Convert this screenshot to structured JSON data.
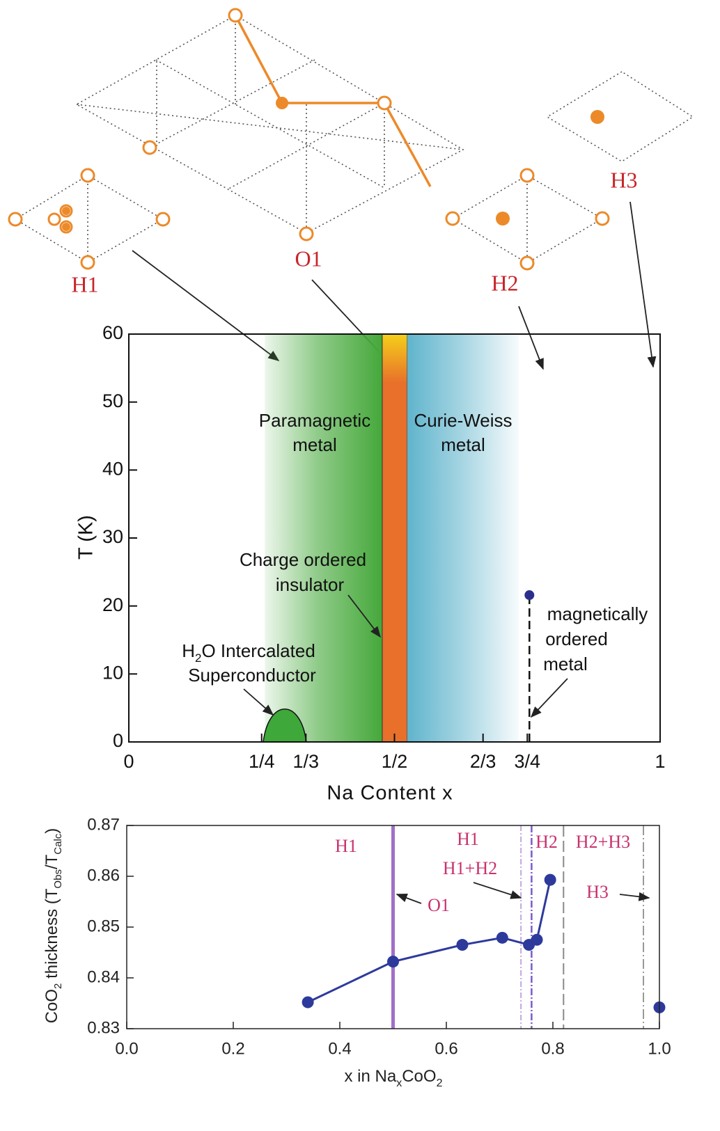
{
  "diagram": {
    "labels": [
      "H1",
      "O1",
      "H2",
      "H3"
    ]
  },
  "chart_data": [
    {
      "type": "phase",
      "xlabel": "Na Content  x",
      "ylabel": "T (K)",
      "xlim": [
        0,
        1
      ],
      "ylim": [
        0,
        60
      ],
      "xticks": [
        0,
        {
          "value": 0.25,
          "label": "1/4"
        },
        {
          "value": 0.3333,
          "label": "1/3"
        },
        {
          "value": 0.5,
          "label": "1/2"
        },
        {
          "value": 0.6667,
          "label": "2/3"
        },
        {
          "value": 0.75,
          "label": "3/4"
        },
        1
      ],
      "yticks": [
        0,
        10,
        20,
        30,
        40,
        50,
        60
      ],
      "regions": [
        {
          "label": [
            "Paramagnetic",
            "metal"
          ],
          "x": [
            0.256,
            0.477
          ],
          "color": "#45a83a"
        },
        {
          "label": [
            "Charge ordered",
            "insulator"
          ],
          "x": [
            0.477,
            0.524
          ],
          "color": "#e8702a"
        },
        {
          "label": [
            "Curie-Weiss",
            "metal"
          ],
          "x": [
            0.524,
            0.734
          ],
          "color": "#5fb4cc"
        }
      ],
      "dome": {
        "label": [
          [
            "H",
            "2",
            "O Intercalated"
          ],
          [
            "Superconductor"
          ]
        ],
        "x": [
          0.253,
          0.334
        ],
        "peak": 4.6,
        "color": "#3fa83a"
      },
      "transition": {
        "label": [
          "magnetically",
          "ordered",
          "metal"
        ],
        "x": 0.754,
        "tmax": 21.6,
        "color": "#2b2f8c"
      }
    },
    {
      "type": "line",
      "xlabel": [
        "x in Na",
        "x",
        "CoO",
        "2"
      ],
      "ylabel": [
        "CoO",
        "2",
        " thickness (T",
        "Obs",
        "/T",
        "Calc",
        ")"
      ],
      "xlim": [
        0,
        1
      ],
      "ylim": [
        0.83,
        0.87
      ],
      "xticks": [
        {
          "value": 0,
          "label": "0.0"
        },
        0.2,
        0.4,
        0.6,
        0.8,
        {
          "value": 1,
          "label": "1.0"
        }
      ],
      "yticks": [
        0.83,
        0.84,
        0.85,
        0.86,
        0.87
      ],
      "series": [
        {
          "x": [
            0.34,
            0.5,
            0.63,
            0.705,
            0.755,
            0.77,
            0.795
          ],
          "values": [
            0.8352,
            0.8432,
            0.8465,
            0.8479,
            0.8465,
            0.8475,
            0.8593
          ],
          "color": "#2d3a9c",
          "line": true
        },
        {
          "x": [
            1.0
          ],
          "values": [
            0.8342
          ],
          "color": "#2d3a9c",
          "line": false
        }
      ],
      "boundaries": [
        0.5,
        0.74,
        0.76,
        0.82,
        0.97
      ],
      "annotations": [
        "H1",
        "H1",
        "H1+H2",
        "H2",
        "H2+H3",
        "H3",
        "O1"
      ]
    }
  ]
}
